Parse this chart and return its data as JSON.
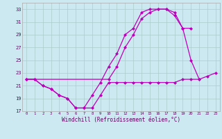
{
  "background_color": "#cce8f0",
  "grid_color": "#aacccc",
  "line_color": "#bb00bb",
  "xlim": [
    -0.5,
    23.5
  ],
  "ylim": [
    17,
    34
  ],
  "xticks": [
    0,
    1,
    2,
    3,
    4,
    5,
    6,
    7,
    8,
    9,
    10,
    11,
    12,
    13,
    14,
    15,
    16,
    17,
    18,
    19,
    20,
    21,
    22,
    23
  ],
  "yticks": [
    17,
    19,
    21,
    23,
    25,
    27,
    29,
    31,
    33
  ],
  "xlabel": "Windchill (Refroidissement éolien,°C)",
  "curve1_x": [
    0,
    1,
    2,
    3,
    4,
    5,
    6,
    7,
    8,
    9,
    10,
    11,
    12,
    13,
    14,
    15,
    16,
    17,
    18,
    19,
    20,
    21
  ],
  "curve1_y": [
    22.0,
    22.0,
    21.0,
    20.5,
    19.5,
    19.0,
    17.5,
    17.5,
    19.5,
    21.5,
    24.0,
    26.0,
    29.0,
    30.0,
    32.5,
    33.0,
    33.0,
    33.0,
    32.0,
    30.0,
    25.0,
    22.0
  ],
  "curve2_x": [
    0,
    1,
    2,
    3,
    4,
    5,
    6,
    7,
    8,
    9,
    10,
    11,
    12,
    13,
    14,
    15,
    16,
    17,
    18,
    19,
    20,
    21,
    22,
    23
  ],
  "curve2_y": [
    22.0,
    22.0,
    21.0,
    20.5,
    19.5,
    19.0,
    17.5,
    17.5,
    17.5,
    19.5,
    21.5,
    21.5,
    21.5,
    21.5,
    21.5,
    21.5,
    21.5,
    21.5,
    21.5,
    22.0,
    22.0,
    22.0,
    22.5,
    23.0
  ],
  "curve3_x": [
    0,
    10,
    11,
    12,
    13,
    14,
    15,
    16,
    17,
    18,
    19,
    20
  ],
  "curve3_y": [
    22.0,
    22.0,
    24.0,
    27.0,
    29.0,
    31.5,
    32.5,
    33.0,
    33.0,
    32.5,
    30.0,
    30.0
  ]
}
